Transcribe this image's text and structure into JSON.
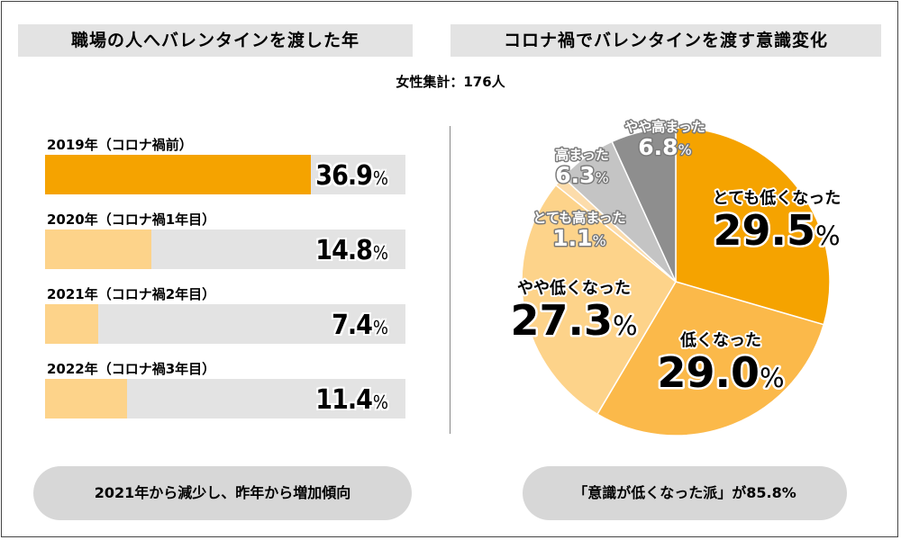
{
  "left_panel": {
    "title": "職場の人へバレンタインを渡した年",
    "summary": "2021年から減少し、昨年から増加傾向"
  },
  "right_panel": {
    "title": "コロナ禍でバレンタインを渡す意識変化",
    "summary": "「意識が低くなった派」が85.8%"
  },
  "subtitle": "女性集計：176人",
  "chart_data": [
    {
      "type": "bar",
      "orientation": "horizontal",
      "categories": [
        "2019年（コロナ禍前）",
        "2020年（コロナ禍1年目）",
        "2021年（コロナ禍2年目）",
        "2022年（コロナ禍3年目）"
      ],
      "values": [
        36.9,
        14.8,
        7.4,
        11.4
      ],
      "value_labels": [
        "36.9",
        "14.8",
        "7.4",
        "11.4"
      ],
      "unit": "%",
      "xlim": [
        0,
        50
      ],
      "colors": [
        "#f5a300",
        "#fdd38a",
        "#fdd38a",
        "#fdd38a"
      ]
    },
    {
      "type": "pie",
      "slices": [
        {
          "label": "とても低くなった",
          "value": 29.5,
          "value_label": "29.5",
          "color": "#f5a300",
          "label_color": "#000000"
        },
        {
          "label": "低くなった",
          "value": 29.0,
          "value_label": "29.0",
          "color": "#fbb94a",
          "label_color": "#000000"
        },
        {
          "label": "やや低くなった",
          "value": 27.3,
          "value_label": "27.3",
          "color": "#fdd38a",
          "label_color": "#000000"
        },
        {
          "label": "とても高まった",
          "value": 1.1,
          "value_label": "1.1",
          "color": "#fcdcab",
          "label_color": "#ffffff"
        },
        {
          "label": "高まった",
          "value": 6.3,
          "value_label": "6.3",
          "color": "#c4c4c4",
          "label_color": "#ffffff"
        },
        {
          "label": "やや高まった",
          "value": 6.8,
          "value_label": "6.8",
          "color": "#8e8e8e",
          "label_color": "#ffffff"
        }
      ],
      "unit": "%"
    }
  ]
}
